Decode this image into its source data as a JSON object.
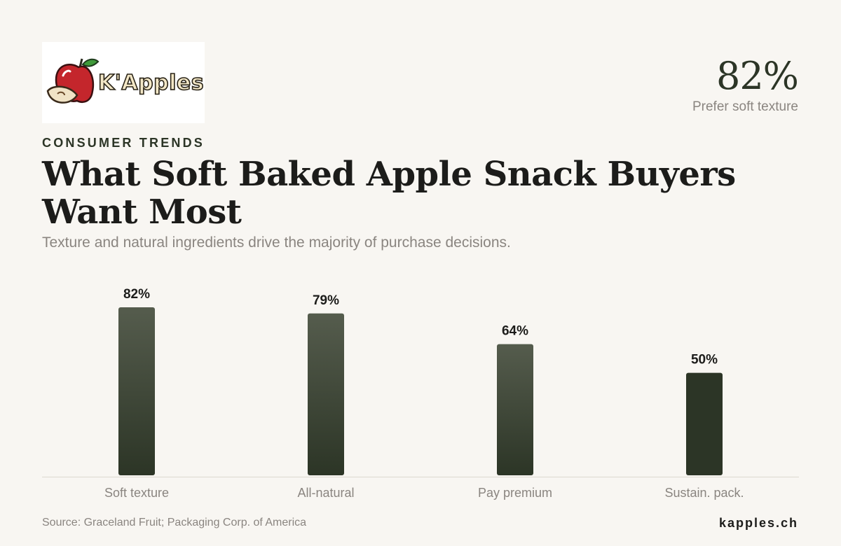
{
  "brand": {
    "logo_text": "K'Apples",
    "domain": "kapples.ch"
  },
  "headline_stat": {
    "value": "82%",
    "label": "Prefer soft texture"
  },
  "eyebrow": "CONSUMER TRENDS",
  "title": "What Soft Baked Apple Snack Buyers Want Most",
  "subtitle": "Texture and natural ingredients drive the majority of purchase decisions.",
  "source": "Source: Graceland Fruit; Packaging Corp. of America",
  "colors": {
    "bar_top": "#555c4d",
    "bar_bottom": "#2c3526",
    "accent": "#2c3526",
    "muted_text": "#8a8580",
    "background": "#f8f6f2"
  },
  "chart_data": {
    "type": "bar",
    "categories": [
      "Soft texture",
      "All-natural",
      "Pay premium",
      "Sustain. pack."
    ],
    "values": [
      82,
      79,
      64,
      50
    ],
    "value_labels": [
      "82%",
      "79%",
      "64%",
      "50%"
    ],
    "unit": "%",
    "ylim": [
      0,
      82
    ],
    "grid": false,
    "legend": "none"
  }
}
